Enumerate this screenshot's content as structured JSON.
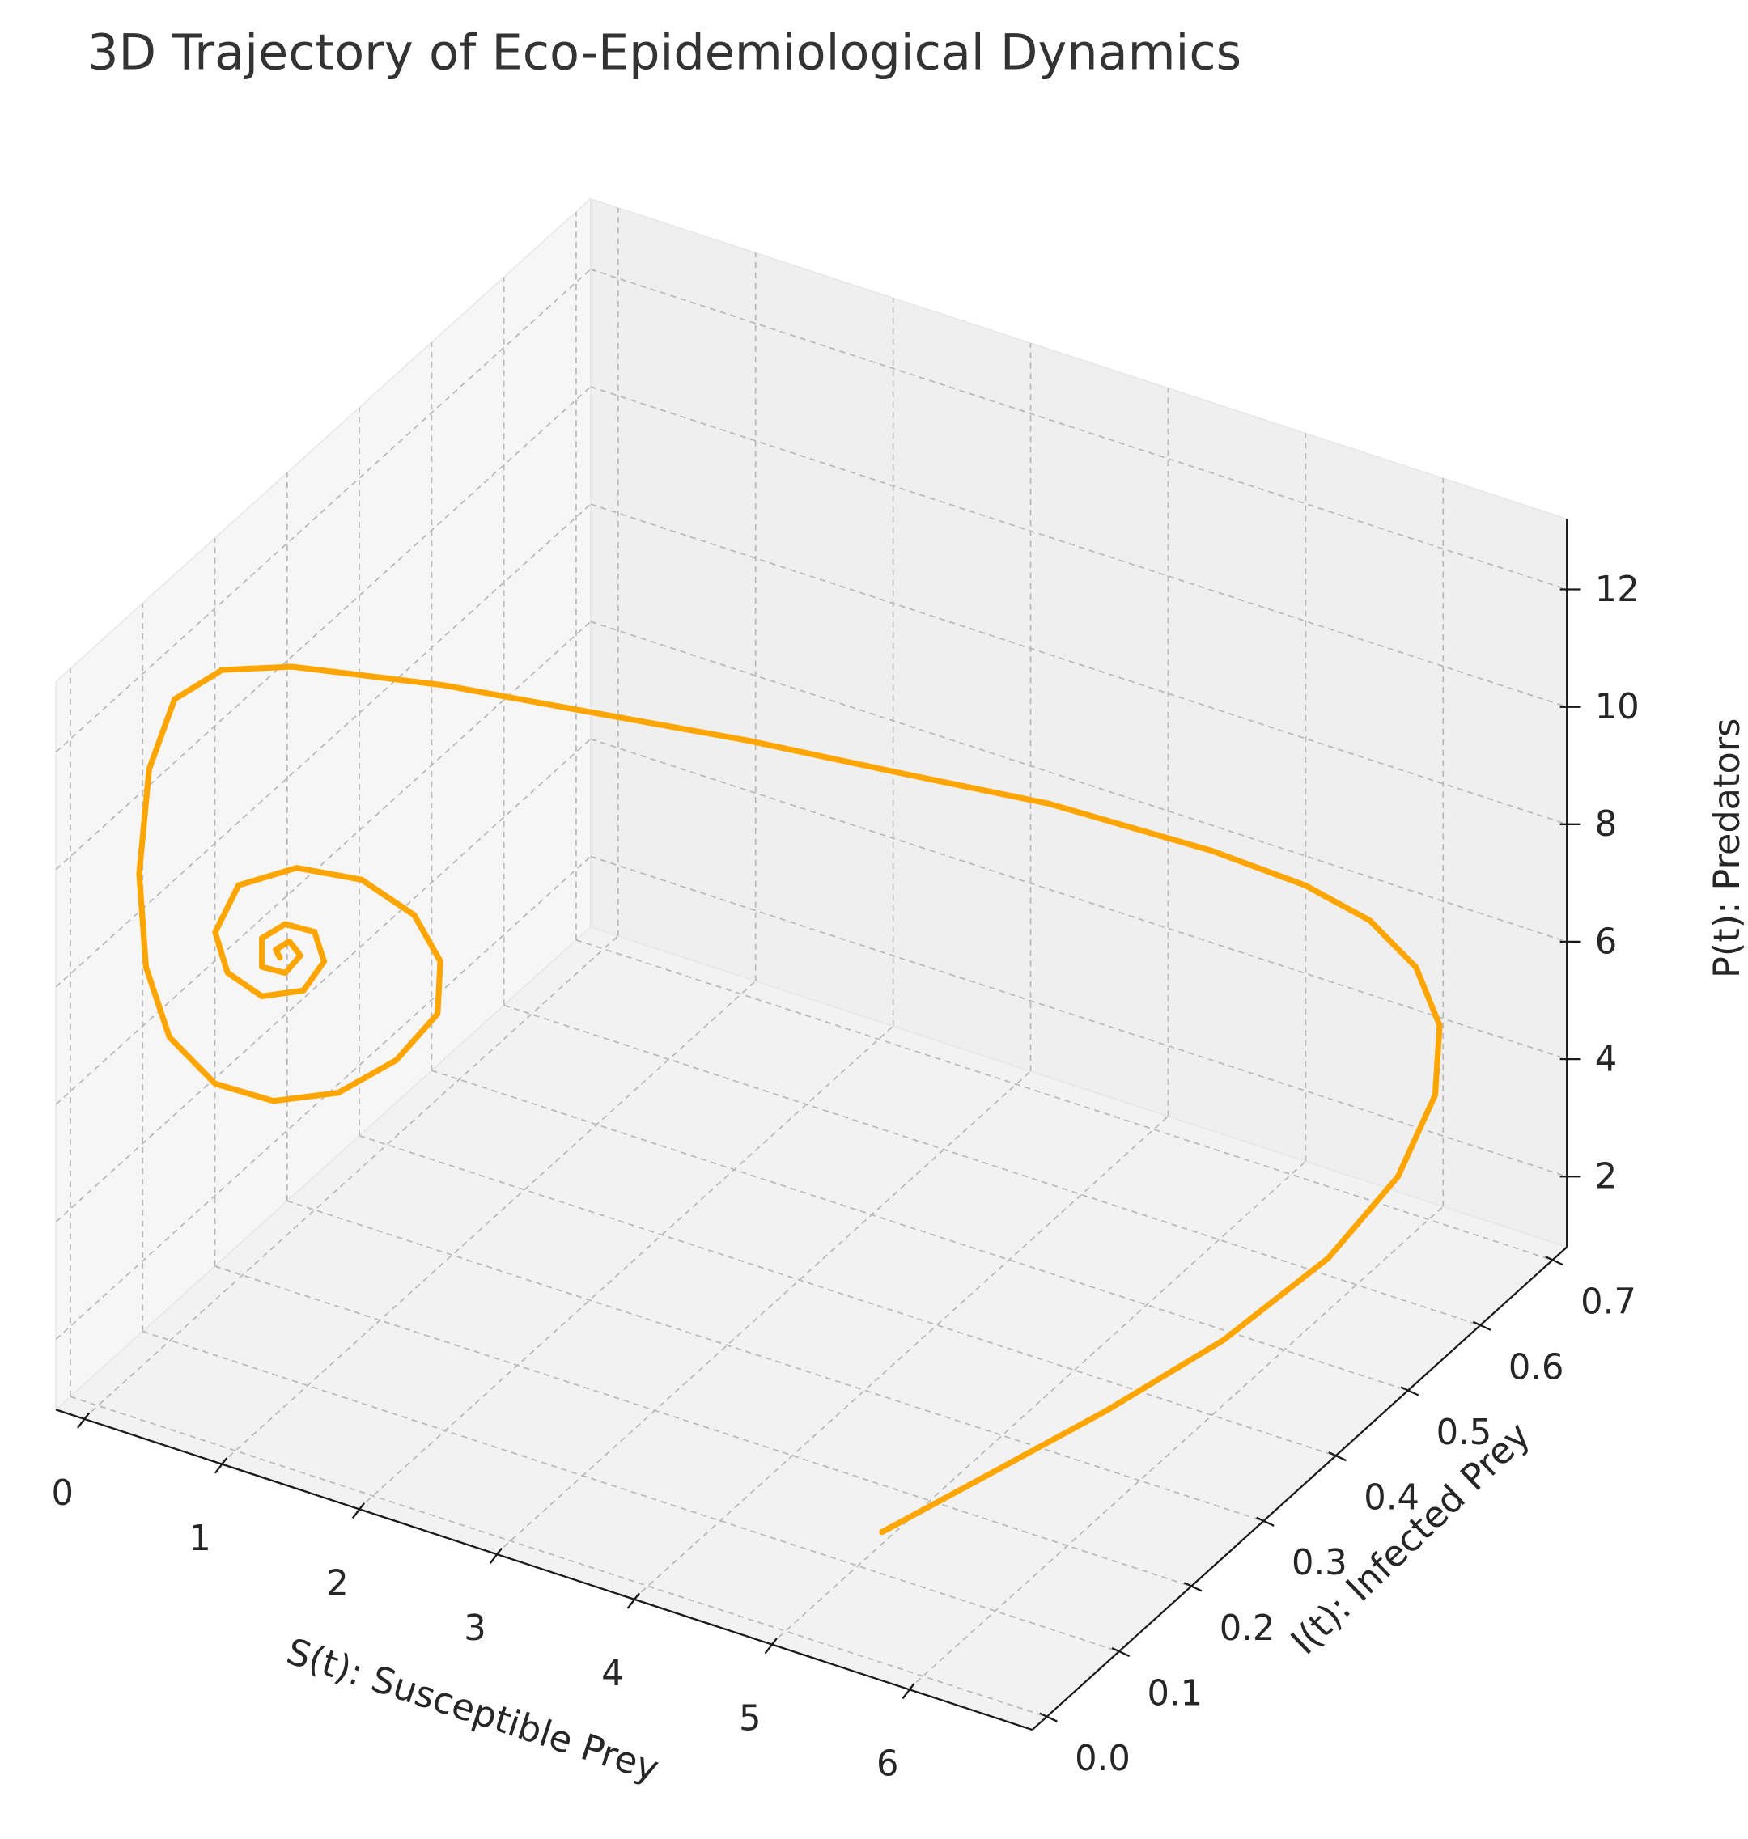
{
  "chart_data": {
    "type": "line3d",
    "title": "3D Trajectory of Eco-Epidemiological Dynamics",
    "x_label": "S(t): Susceptible Prey",
    "y_label": "I(t): Infected Prey",
    "z_label": "P(t): Predators",
    "xlim": [
      -0.2,
      6.9
    ],
    "ylim": [
      -0.02,
      0.72
    ],
    "zlim": [
      0.8,
      13.2
    ],
    "xticks": [
      0,
      1,
      2,
      3,
      4,
      5,
      6
    ],
    "yticks": [
      {
        "value": 0,
        "label": "0.0"
      },
      0.1,
      0.2,
      0.3,
      0.4,
      0.5,
      0.6,
      0.7
    ],
    "zticks": [
      2,
      4,
      6,
      8,
      10,
      12
    ],
    "grid": true,
    "series": [
      {
        "color": "#ffa500",
        "x": [
          5.44,
          5.7,
          6.03,
          6.19,
          6.32,
          6.46,
          6.52,
          6.5,
          6.38,
          6.15,
          5.73,
          5.21,
          4.29,
          3.64,
          2.82,
          2.05,
          1.46,
          0.78,
          0.43,
          0.19,
          0.11,
          0.09,
          0.14,
          0.31,
          0.59,
          0.96,
          1.38,
          1.75,
          2.05,
          2.07,
          1.88,
          1.55,
          1.13,
          0.76,
          0.59,
          0.68,
          0.93,
          1.18,
          1.33,
          1.26,
          1.1,
          0.93,
          0.93,
          1.1,
          1.21,
          1.13,
          1.03,
          1.06
        ],
        "y": [
          0.05,
          0.15,
          0.25,
          0.38,
          0.5,
          0.57,
          0.61,
          0.62,
          0.61,
          0.59,
          0.58,
          0.55,
          0.5,
          0.43,
          0.36,
          0.28,
          0.2,
          0.12,
          0.09,
          0.07,
          0.05,
          0.04,
          0.04,
          0.04,
          0.05,
          0.06,
          0.07,
          0.08,
          0.08,
          0.08,
          0.08,
          0.07,
          0.06,
          0.05,
          0.05,
          0.05,
          0.05,
          0.06,
          0.06,
          0.06,
          0.05,
          0.05,
          0.05,
          0.05,
          0.05,
          0.05,
          0.05,
          0.05
        ],
        "z": [
          2.27,
          2.35,
          2.58,
          2.45,
          2.61,
          3.33,
          4.32,
          5.38,
          6.39,
          7.23,
          7.62,
          8.14,
          8.79,
          9.56,
          10.3,
          11.1,
          11.97,
          12.65,
          12.66,
          12.2,
          11.17,
          9.48,
          7.93,
          6.87,
          6.18,
          6.06,
          6.41,
          7.14,
          8.16,
          9.07,
          9.71,
          10.17,
          10.16,
          9.69,
          8.76,
          8.14,
          7.93,
          8.11,
          8.72,
          9.17,
          9.29,
          8.92,
          8.43,
          8.46,
          8.84,
          9.02,
          8.8,
          8.69
        ]
      }
    ]
  }
}
